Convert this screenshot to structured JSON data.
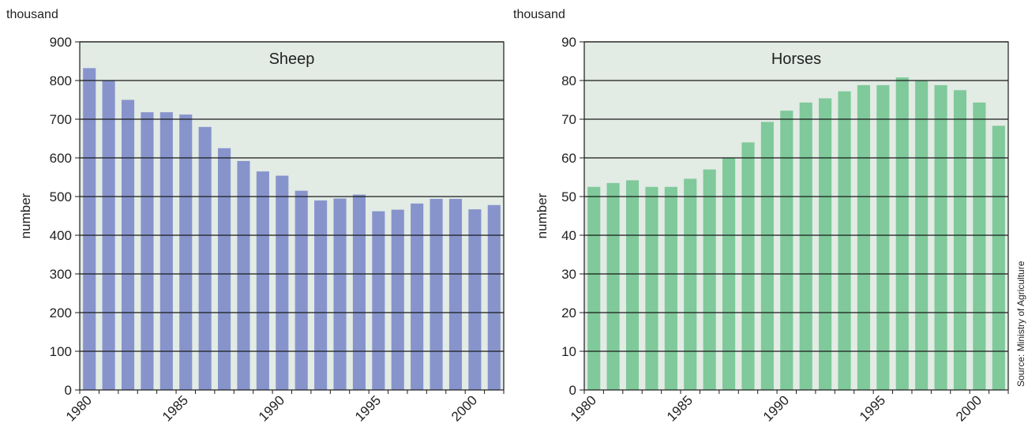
{
  "source": "Source: Ministry of Agriculture",
  "chart_data": [
    {
      "type": "bar",
      "title": "Sheep",
      "unit_label": "thousand",
      "ylabel": "number",
      "xlabel": "",
      "ylim": [
        0,
        900
      ],
      "yticks": [
        0,
        100,
        200,
        300,
        400,
        500,
        600,
        700,
        800,
        900
      ],
      "x": [
        1980,
        1981,
        1982,
        1983,
        1984,
        1985,
        1986,
        1987,
        1988,
        1989,
        1990,
        1991,
        1992,
        1993,
        1994,
        1995,
        1996,
        1997,
        1998,
        1999,
        2000,
        2001
      ],
      "xtick_labels": [
        "1980",
        "1985",
        "1990",
        "1995",
        "2000"
      ],
      "values": [
        832,
        800,
        750,
        718,
        718,
        712,
        680,
        625,
        592,
        565,
        554,
        515,
        490,
        495,
        505,
        462,
        466,
        482,
        494,
        494,
        467,
        478
      ],
      "bar_color": "#8794cc",
      "plot_background": "#e2ebe4",
      "grid": true
    },
    {
      "type": "bar",
      "title": "Horses",
      "unit_label": "thousand",
      "ylabel": "number",
      "xlabel": "",
      "ylim": [
        0,
        90
      ],
      "yticks": [
        0,
        10,
        20,
        30,
        40,
        50,
        60,
        70,
        80,
        90
      ],
      "x": [
        1980,
        1981,
        1982,
        1983,
        1984,
        1985,
        1986,
        1987,
        1988,
        1989,
        1990,
        1991,
        1992,
        1993,
        1994,
        1995,
        1996,
        1997,
        1998,
        1999,
        2000,
        2001
      ],
      "xtick_labels": [
        "1980",
        "1985",
        "1990",
        "1995",
        "2000"
      ],
      "values": [
        52.5,
        53.5,
        54.2,
        52.5,
        52.5,
        54.6,
        57,
        60,
        64,
        69.3,
        72.2,
        74.3,
        75.4,
        77.2,
        78.8,
        78.8,
        80.8,
        80.1,
        78.8,
        77.5,
        74.3,
        68.3
      ],
      "bar_color": "#7fc99a",
      "plot_background": "#e2ebe4",
      "grid": true
    }
  ]
}
